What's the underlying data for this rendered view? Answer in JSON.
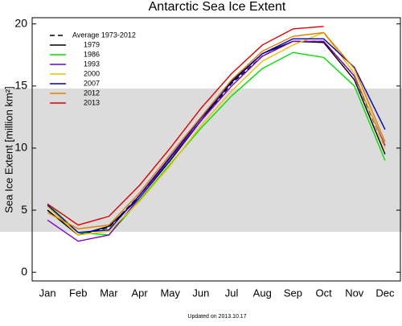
{
  "chart_data": {
    "type": "line",
    "title": "Antarctic Sea Ice Extent",
    "y_label": "Sea Ice Extent [million km²]",
    "footer": "Updated on 2013.10.17",
    "categories": [
      "Jan",
      "Feb",
      "Mar",
      "Apr",
      "May",
      "Jun",
      "Jul",
      "Aug",
      "Sep",
      "Oct",
      "Nov",
      "Dec"
    ],
    "ylim": [
      -0.7,
      20.5
    ],
    "yticks": [
      0,
      5,
      10,
      15,
      20
    ],
    "legend": "upper left",
    "series": [
      {
        "name": "Average 1973-2012",
        "color": "#000000",
        "dashed": true,
        "values": [
          5.0,
          3.0,
          3.6,
          6.2,
          9.2,
          12.2,
          15.2,
          17.4,
          18.6,
          18.6,
          15.8,
          10.0
        ]
      },
      {
        "name": "1979",
        "color": "#000000",
        "values": [
          5.0,
          3.0,
          3.7,
          6.0,
          9.0,
          12.2,
          15.4,
          17.6,
          18.6,
          18.5,
          15.5,
          9.5
        ]
      },
      {
        "name": "1986",
        "color": "#00e000",
        "values": [
          5.5,
          3.2,
          3.0,
          5.8,
          8.7,
          11.6,
          14.2,
          16.4,
          17.7,
          17.3,
          15.0,
          9.0
        ]
      },
      {
        "name": "1993",
        "color": "#7a00c8",
        "values": [
          4.2,
          2.5,
          3.0,
          6.0,
          9.2,
          12.2,
          15.0,
          17.4,
          18.6,
          18.6,
          15.8,
          10.2
        ]
      },
      {
        "name": "2000",
        "color": "#f0c000",
        "values": [
          5.3,
          3.0,
          3.3,
          5.7,
          8.6,
          11.8,
          14.6,
          17.0,
          18.3,
          19.3,
          16.0,
          10.0
        ]
      },
      {
        "name": "2007",
        "color": "#0000c0",
        "values": [
          5.4,
          3.2,
          3.4,
          6.2,
          9.3,
          12.4,
          15.3,
          17.6,
          18.8,
          18.8,
          16.5,
          11.5
        ]
      },
      {
        "name": "2012",
        "color": "#e08000",
        "values": [
          4.8,
          3.5,
          3.8,
          6.4,
          9.5,
          12.5,
          15.5,
          17.8,
          19.0,
          19.3,
          16.4,
          10.5
        ]
      },
      {
        "name": "2013",
        "color": "#e00000",
        "values": [
          5.5,
          3.8,
          4.5,
          7.0,
          10.0,
          13.2,
          16.0,
          18.3,
          19.6,
          19.8,
          null,
          null
        ]
      }
    ]
  }
}
